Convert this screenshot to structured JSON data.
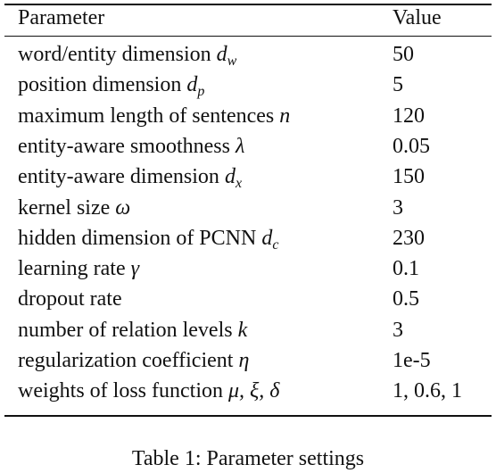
{
  "table": {
    "header": [
      "Parameter",
      "Value"
    ],
    "rows": [
      {
        "name": "word/entity dimension",
        "symbol": "d",
        "subscript": "w",
        "value": 50
      },
      {
        "name": "position dimension",
        "symbol": "d",
        "subscript": "p",
        "value": 5
      },
      {
        "name": "maximum length of sentences",
        "symbol": "n",
        "value": 120
      },
      {
        "name": "entity-aware smoothness",
        "symbol": "λ",
        "value": 0.05
      },
      {
        "name": "entity-aware dimension",
        "symbol": "d",
        "subscript": "x",
        "value": 150
      },
      {
        "name": "kernel size",
        "symbol": "ω",
        "value": 3
      },
      {
        "name": "hidden dimension of PCNN",
        "symbol": "d",
        "subscript": "c",
        "value": 230
      },
      {
        "name": "learning rate",
        "symbol": "γ",
        "value": 0.1
      },
      {
        "name": "dropout rate",
        "value": 0.5
      },
      {
        "name": "number of relation levels",
        "symbol": "k",
        "value": 3
      },
      {
        "name": "regularization coefficient",
        "symbol": "η",
        "value": "1e-5"
      },
      {
        "name": "weights of loss function",
        "symbol": "μ, ξ, δ",
        "value": "1, 0.6, 1"
      }
    ],
    "caption": "Table 1: Parameter settings"
  }
}
